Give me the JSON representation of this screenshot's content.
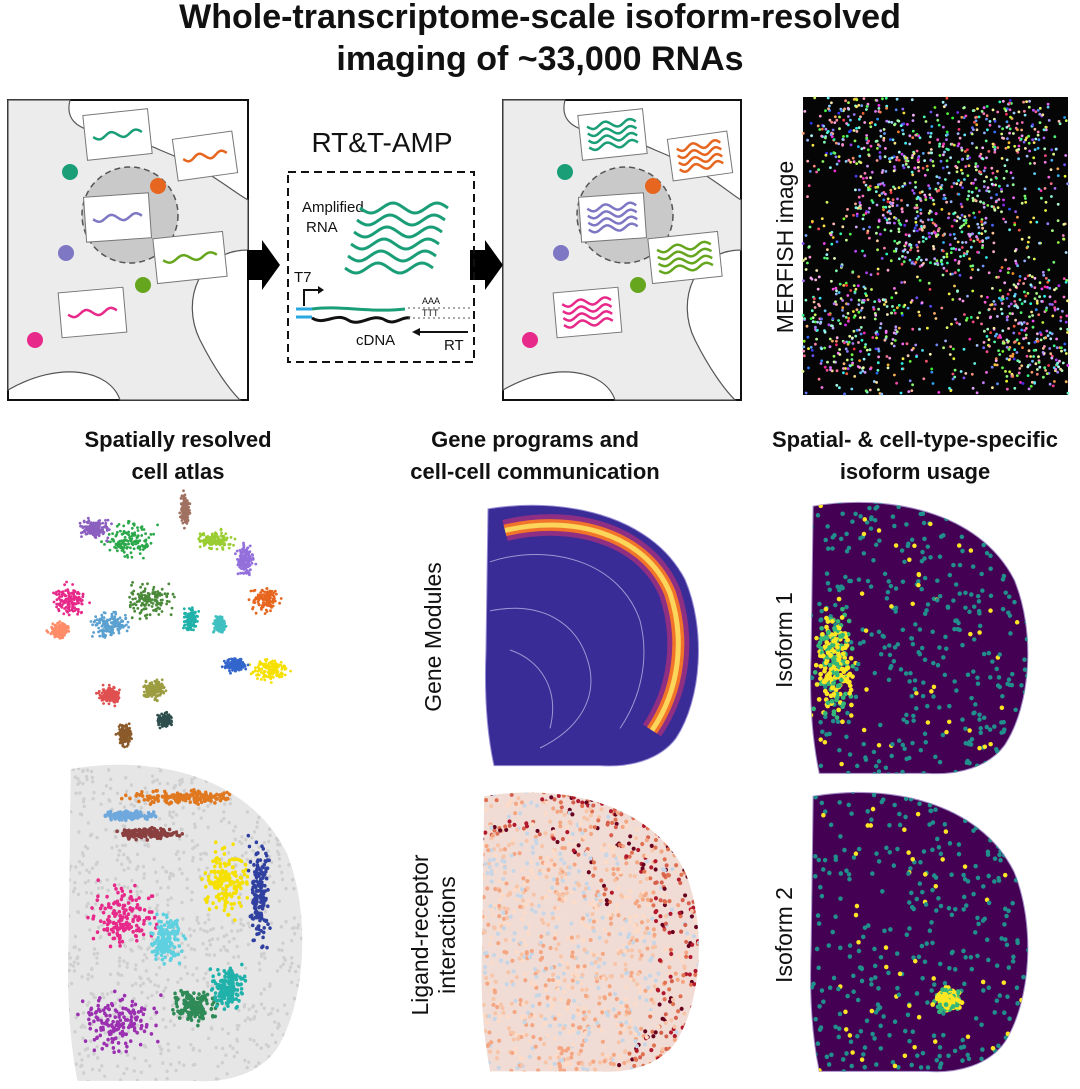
{
  "header": {
    "title": [
      "Whole-transcriptome-scale isoform-resolved",
      "imaging of ~33,000 RNAs"
    ]
  },
  "method": {
    "name": "RT&T-AMP",
    "amplified_label": [
      "Amplified",
      "RNA"
    ],
    "promoter": "T7",
    "poly_a": "AAA",
    "poly_t": "TTT",
    "cdna": "cDNA",
    "primer": "RT"
  },
  "merfish_label": "MERFISH image",
  "panels": [
    {
      "title": [
        "Spatially resolved",
        "cell atlas"
      ]
    },
    {
      "title": [
        "Gene programs and",
        "cell-cell communication"
      ],
      "labels": [
        "Gene Modules",
        [
          "Ligand-receptor",
          "interactions"
        ]
      ]
    },
    {
      "title": [
        "Spatial- & cell-type-specific",
        "isoform usage"
      ],
      "labels": [
        "Isoform 1",
        "Isoform 2"
      ]
    }
  ]
}
